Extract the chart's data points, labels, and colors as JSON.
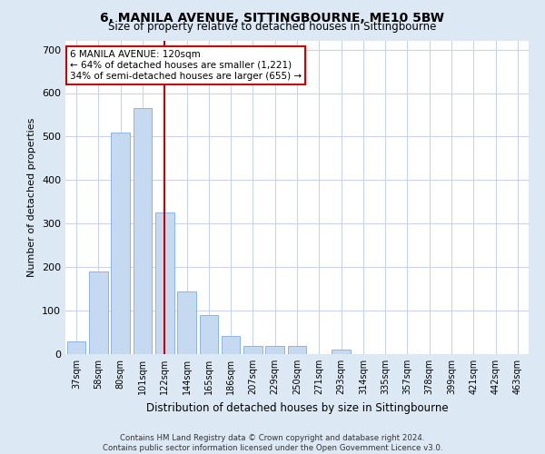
{
  "title": "6, MANILA AVENUE, SITTINGBOURNE, ME10 5BW",
  "subtitle": "Size of property relative to detached houses in Sittingbourne",
  "xlabel": "Distribution of detached houses by size in Sittingbourne",
  "ylabel": "Number of detached properties",
  "categories": [
    "37sqm",
    "58sqm",
    "80sqm",
    "101sqm",
    "122sqm",
    "144sqm",
    "165sqm",
    "186sqm",
    "207sqm",
    "229sqm",
    "250sqm",
    "271sqm",
    "293sqm",
    "314sqm",
    "335sqm",
    "357sqm",
    "378sqm",
    "399sqm",
    "421sqm",
    "442sqm",
    "463sqm"
  ],
  "values": [
    30,
    190,
    510,
    565,
    325,
    145,
    90,
    42,
    18,
    18,
    18,
    0,
    10,
    0,
    0,
    0,
    0,
    0,
    0,
    0,
    0
  ],
  "bar_color": "#c5d9f1",
  "bar_edge_color": "#8db4e2",
  "vline_x_index": 4,
  "vline_color": "#cc0000",
  "annotation_text": "6 MANILA AVENUE: 120sqm\n← 64% of detached houses are smaller (1,221)\n34% of semi-detached houses are larger (655) →",
  "annotation_box_color": "#ffffff",
  "annotation_box_edge_color": "#cc0000",
  "ylim": [
    0,
    720
  ],
  "yticks": [
    0,
    100,
    200,
    300,
    400,
    500,
    600,
    700
  ],
  "footer_line1": "Contains HM Land Registry data © Crown copyright and database right 2024.",
  "footer_line2": "Contains public sector information licensed under the Open Government Licence v3.0.",
  "background_color": "#dde8f5",
  "plot_bg_color": "#ffffff",
  "grid_color": "#c8d4e8",
  "title_fontsize": 10,
  "subtitle_fontsize": 8.5,
  "ylabel_fontsize": 8,
  "xlabel_fontsize": 8.5,
  "annot_fontsize": 7.5
}
